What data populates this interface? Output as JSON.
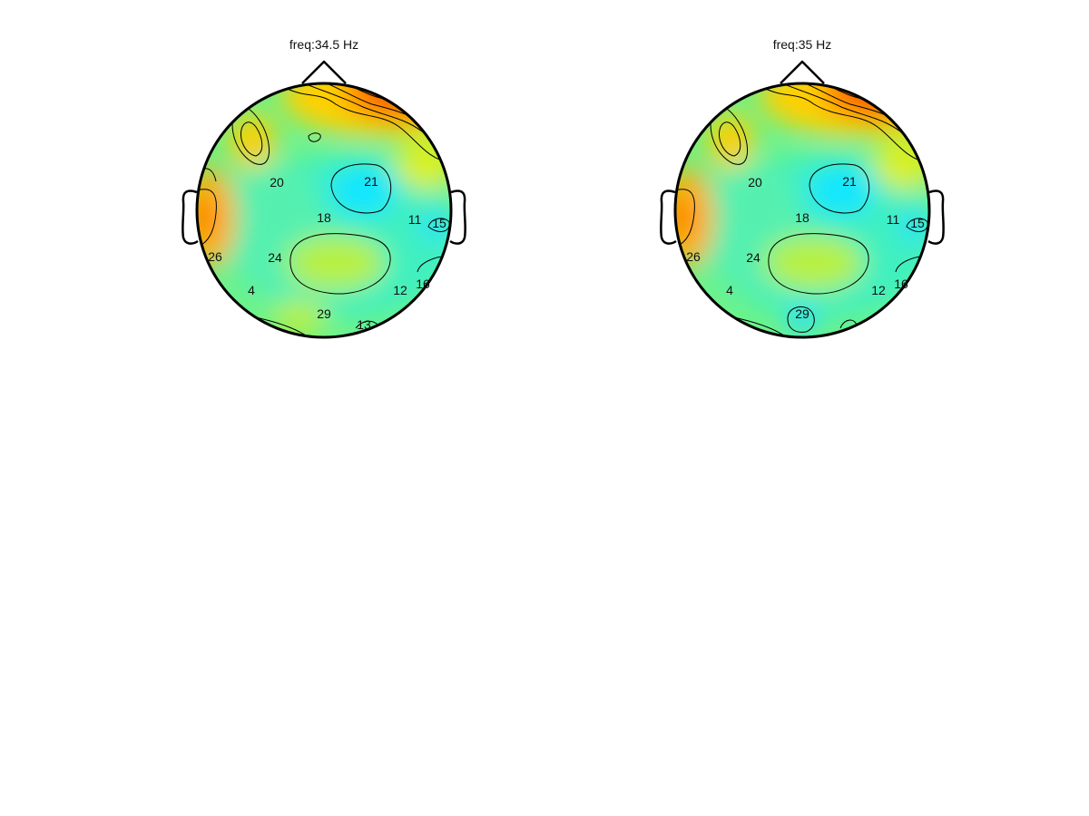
{
  "figure": {
    "background": "#ffffff"
  },
  "chart_data": [
    {
      "type": "heatmap",
      "subtype": "topographic-scalp-map",
      "title": "freq:34.5 Hz",
      "colormap": "jet",
      "electrodes": [
        {
          "label": "20"
        },
        {
          "label": "21"
        },
        {
          "label": "18"
        },
        {
          "label": "11"
        },
        {
          "label": "15"
        },
        {
          "label": "26"
        },
        {
          "label": "24"
        },
        {
          "label": "4"
        },
        {
          "label": "12"
        },
        {
          "label": "16"
        },
        {
          "label": "29"
        },
        {
          "label": "13"
        }
      ]
    },
    {
      "type": "heatmap",
      "subtype": "topographic-scalp-map",
      "title": "freq:35 Hz",
      "colormap": "jet",
      "electrodes": [
        {
          "label": "20"
        },
        {
          "label": "21"
        },
        {
          "label": "18"
        },
        {
          "label": "11"
        },
        {
          "label": "15"
        },
        {
          "label": "26"
        },
        {
          "label": "24"
        },
        {
          "label": "4"
        },
        {
          "label": "12"
        },
        {
          "label": "16"
        },
        {
          "label": "29"
        }
      ]
    }
  ]
}
